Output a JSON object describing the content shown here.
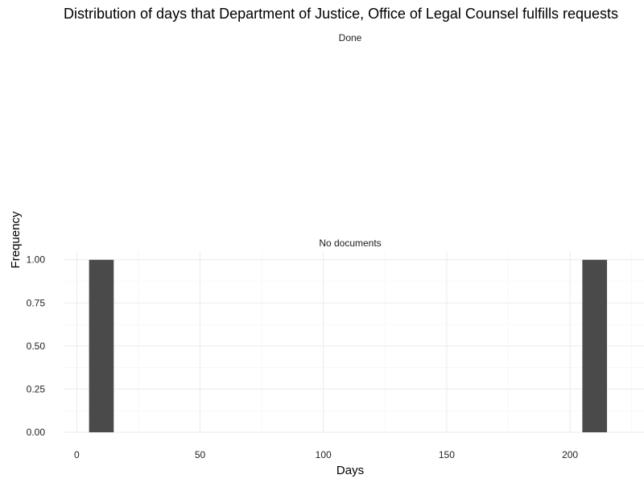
{
  "chart_data": {
    "type": "bar",
    "title": "Distribution of days that Department of Justice, Office of Legal Counsel fulfills requests",
    "xlabel": "Days",
    "ylabel": "Frequency",
    "x_ticks": [
      0,
      50,
      100,
      150,
      200
    ],
    "y_ticks": [
      "0.00",
      "0.25",
      "0.50",
      "0.75",
      "1.00"
    ],
    "xlim": [
      -5,
      230
    ],
    "ylim": [
      0,
      1.05
    ],
    "grid": true,
    "panels": [
      {
        "label": "Done",
        "bars": []
      },
      {
        "label": "No documents",
        "bars": [
          {
            "x_start": 5,
            "x_end": 15,
            "value": 1
          },
          {
            "x_start": 205,
            "x_end": 215,
            "value": 1
          }
        ]
      }
    ]
  }
}
